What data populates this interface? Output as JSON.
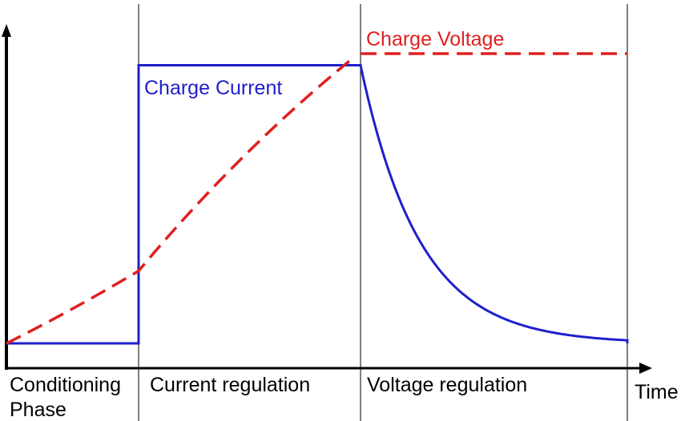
{
  "chart_data": {
    "type": "line",
    "title": "",
    "xlabel": "Time",
    "ylabel": "",
    "phases": [
      {
        "label": "Conditioning Phase",
        "label_lines": [
          "Conditioning",
          "Phase"
        ]
      },
      {
        "label": "Current regulation",
        "label_lines": [
          "Current regulation"
        ]
      },
      {
        "label": "Voltage regulation",
        "label_lines": [
          "Voltage regulation"
        ]
      }
    ],
    "series": [
      {
        "name": "Charge Current",
        "color": "#1f1fcc",
        "style": "solid",
        "shape": "constant-low, step up, constant, exponential decay",
        "levels": {
          "conditioning": 0.0,
          "current_regulation": 0.96,
          "voltage_regulation_end": 0.0
        }
      },
      {
        "name": "Charge Voltage",
        "color": "#e02020",
        "style": "dashed",
        "shape": "rises in conditioning, steeper rise in current regulation, constant in voltage regulation",
        "levels": {
          "start": 0.0,
          "conditioning_end": 0.25,
          "current_regulation_end": 1.0,
          "voltage_regulation": 1.0
        }
      }
    ]
  }
}
